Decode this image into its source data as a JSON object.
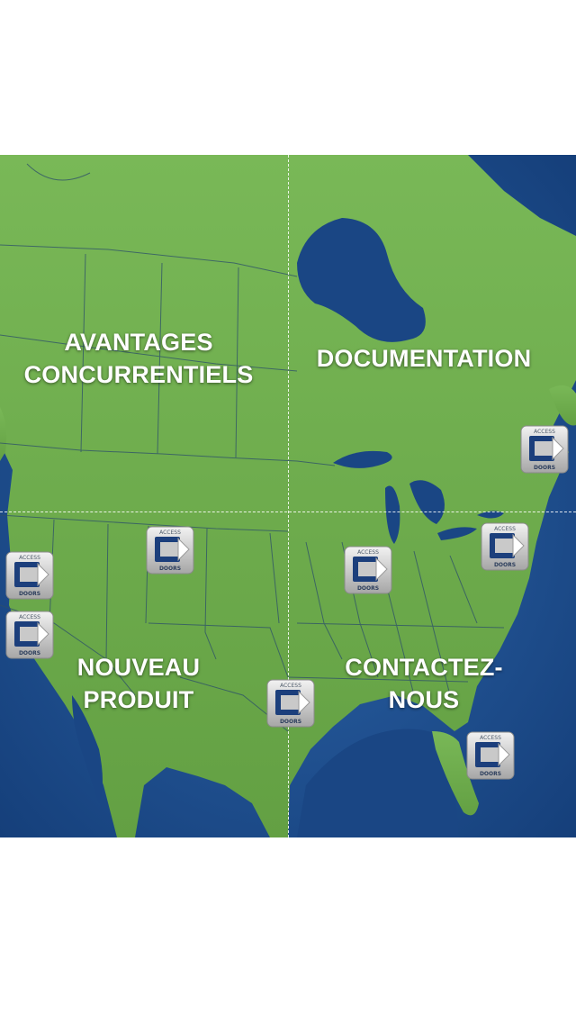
{
  "quadrants": {
    "competitive_advantages": "AVANTAGES\nCONCURRENTIELS",
    "documentation": "DOCUMENTATION",
    "new_product": "NOUVEAU\nPRODUIT",
    "contact_us": "CONTACTEZ-\nNOUS"
  },
  "pin": {
    "brand_top": "ACCESS",
    "brand_letter": "C",
    "brand_bottom": "DOORS"
  },
  "colors": {
    "land": "#6fae4d",
    "land_dark": "#5c9a3e",
    "ocean": "#1f4f8f",
    "ocean_dark": "#133a70",
    "border_lines": "#2c4f6a"
  },
  "pins": [
    {
      "name": "pin-quebec"
    },
    {
      "name": "pin-colorado"
    },
    {
      "name": "pin-california-north"
    },
    {
      "name": "pin-california-south"
    },
    {
      "name": "pin-illinois"
    },
    {
      "name": "pin-new-york"
    },
    {
      "name": "pin-texas"
    },
    {
      "name": "pin-florida"
    }
  ]
}
